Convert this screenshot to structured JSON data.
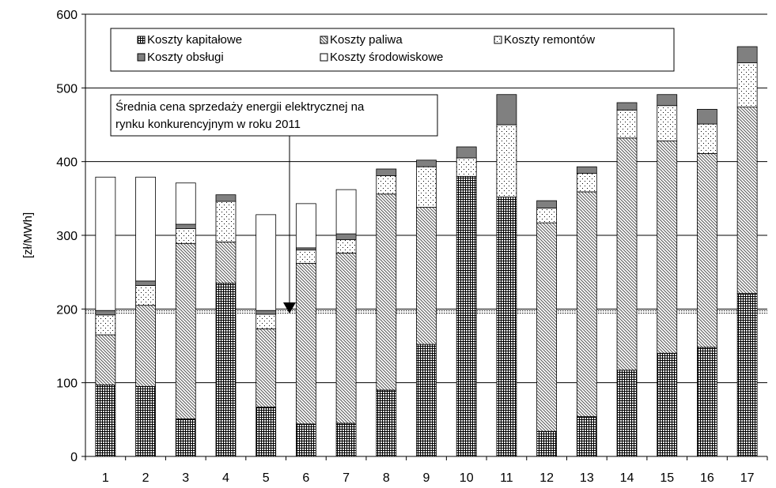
{
  "chart_data": {
    "type": "bar",
    "stacked": true,
    "categories": [
      "1",
      "2",
      "3",
      "4",
      "5",
      "6",
      "7",
      "8",
      "9",
      "10",
      "11",
      "12",
      "13",
      "14",
      "15",
      "16",
      "17"
    ],
    "series": [
      {
        "name": "Koszty kapitałowe",
        "key": "kap",
        "values": [
          97,
          95,
          51,
          235,
          67,
          44,
          45,
          90,
          152,
          380,
          352,
          34,
          54,
          117,
          140,
          148,
          221
        ]
      },
      {
        "name": "Koszty paliwa",
        "key": "pal",
        "values": [
          68,
          110,
          238,
          56,
          106,
          218,
          231,
          266,
          186,
          0,
          0,
          283,
          305,
          315,
          288,
          263,
          253
        ]
      },
      {
        "name": "Koszty remontów",
        "key": "rem",
        "values": [
          27,
          27,
          20,
          55,
          20,
          18,
          18,
          25,
          55,
          25,
          98,
          20,
          25,
          38,
          48,
          40,
          60
        ]
      },
      {
        "name": "Koszty obsługi",
        "key": "obs",
        "values": [
          6,
          6,
          6,
          9,
          5,
          3,
          8,
          9,
          9,
          15,
          41,
          10,
          9,
          10,
          15,
          20,
          22
        ]
      },
      {
        "name": "Koszty środowiskowe",
        "key": "sro",
        "values": [
          181,
          141,
          56,
          0,
          130,
          60,
          60,
          0,
          0,
          0,
          0,
          0,
          0,
          0,
          0,
          0,
          0
        ]
      }
    ],
    "xlabel": "",
    "ylabel": "[zł/MWh]",
    "ylim": [
      0,
      600
    ],
    "yticks": [
      0,
      100,
      200,
      300,
      400,
      500,
      600
    ],
    "gridlines": true,
    "reference_line": {
      "value": 196,
      "label": "Średnia cena sprzedaży energii elektrycznej na rynku konkurencyjnym w roku 2011"
    },
    "legend_position": "top"
  },
  "legend": [
    {
      "label": "Koszty kapitałowe",
      "key": "kap"
    },
    {
      "label": "Koszty paliwa",
      "key": "pal"
    },
    {
      "label": "Koszty remontów",
      "key": "rem"
    },
    {
      "label": "Koszty obsługi",
      "key": "obs"
    },
    {
      "label": "Koszty środowiskowe",
      "key": "sro"
    }
  ],
  "annotation": {
    "line1": "Średnia cena sprzedaży energii elektrycznej na",
    "line2": "rynku konkurencyjnym w roku 2011"
  },
  "colors": {
    "obs": "#808080",
    "sro": "#ffffff",
    "pattern_ink": "#000000"
  }
}
